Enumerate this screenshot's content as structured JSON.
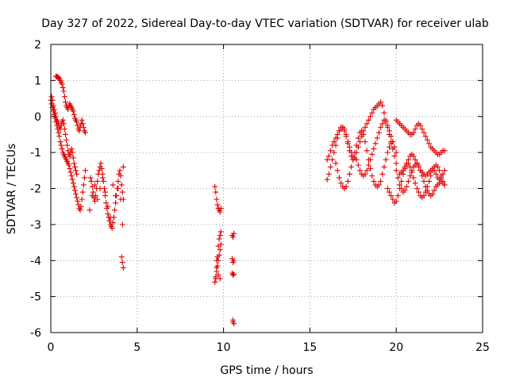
{
  "chart_data": {
    "type": "scatter",
    "title": "Day 327 of 2022, Sidereal Day-to-day VTEC variation (SDTVAR) for receiver ulab",
    "xlabel": "GPS time / hours",
    "ylabel": "SDTVAR / TECUs",
    "xlim": [
      0,
      25
    ],
    "ylim": [
      -6,
      2
    ],
    "x_ticks": [
      0,
      5,
      10,
      15,
      20,
      25
    ],
    "y_ticks": [
      -6,
      -5,
      -4,
      -3,
      -2,
      -1,
      0,
      1,
      2
    ],
    "x_tick_labels": [
      "0",
      "5",
      "10",
      "15",
      "20",
      "25"
    ],
    "y_tick_labels": [
      "-6",
      "-5",
      "-4",
      "-3",
      "-2",
      "-1",
      "0",
      "1",
      "2"
    ],
    "grid": true,
    "marker": "+",
    "series": [
      {
        "name": "SDTVAR",
        "color": "#e00000",
        "x": [
          0.0,
          0.05,
          0.1,
          0.15,
          0.2,
          0.25,
          0.3,
          0.35,
          0.4,
          0.45,
          0.5,
          0.55,
          0.6,
          0.65,
          0.7,
          0.75,
          0.8,
          0.85,
          0.9,
          0.95,
          1.0,
          1.05,
          1.1,
          1.15,
          1.2,
          1.25,
          1.3,
          1.35,
          1.4,
          1.45,
          1.5,
          1.55,
          1.6,
          1.65,
          1.7,
          1.75,
          1.8,
          1.85,
          1.9,
          1.95,
          2.0,
          0.05,
          0.1,
          0.15,
          0.2,
          0.25,
          0.3,
          0.35,
          0.4,
          0.45,
          0.5,
          0.55,
          0.6,
          0.65,
          0.7,
          0.75,
          0.8,
          0.85,
          0.9,
          0.95,
          1.0,
          1.05,
          1.1,
          1.15,
          1.2,
          1.25,
          1.3,
          1.35,
          1.4,
          1.45,
          1.5,
          0.3,
          0.35,
          0.4,
          0.45,
          0.5,
          0.55,
          0.6,
          0.65,
          0.7,
          0.75,
          0.8,
          0.85,
          0.9,
          0.95,
          1.0,
          1.05,
          1.1,
          1.15,
          1.2,
          1.25,
          1.3,
          1.35,
          1.4,
          1.45,
          1.5,
          1.55,
          1.6,
          1.65,
          1.7,
          1.75,
          1.8,
          1.85,
          1.9,
          1.95,
          2.0,
          2.3,
          2.35,
          2.4,
          2.45,
          2.5,
          2.55,
          2.6,
          2.65,
          2.7,
          2.75,
          2.8,
          2.85,
          2.9,
          2.95,
          3.0,
          3.05,
          3.1,
          3.15,
          3.2,
          3.25,
          3.3,
          3.35,
          3.4,
          3.45,
          3.5,
          3.55,
          3.6,
          3.65,
          3.7,
          3.75,
          3.8,
          3.85,
          3.9,
          3.95,
          4.0,
          4.05,
          4.1,
          4.15,
          4.2,
          2.25,
          2.4,
          2.55,
          2.7,
          2.85,
          3.0,
          3.15,
          3.3,
          3.45,
          3.6,
          3.75,
          3.9,
          4.05,
          4.2,
          4.1,
          4.15,
          4.2,
          4.15,
          9.5,
          9.55,
          9.6,
          9.65,
          9.7,
          9.75,
          9.8,
          9.85,
          9.5,
          9.55,
          9.6,
          9.65,
          9.7,
          9.75,
          9.8,
          9.85,
          9.55,
          9.6,
          9.65,
          9.7,
          9.75,
          9.8,
          9.85,
          9.6,
          9.7,
          9.8,
          10.5,
          10.55,
          10.6,
          10.5,
          10.55,
          10.6,
          10.5,
          10.55,
          10.6,
          10.55,
          10.6,
          10.55,
          16.0,
          16.1,
          16.2,
          16.3,
          16.4,
          16.5,
          16.6,
          16.7,
          16.8,
          16.9,
          17.0,
          17.1,
          17.2,
          17.3,
          17.4,
          17.5,
          17.6,
          17.7,
          17.8,
          17.9,
          18.0,
          18.1,
          18.2,
          18.3,
          18.4,
          18.5,
          18.6,
          18.7,
          18.8,
          18.9,
          19.0,
          19.1,
          19.2,
          19.3,
          19.4,
          19.5,
          19.6,
          19.7,
          19.8,
          19.9,
          20.0,
          16.0,
          16.1,
          16.2,
          16.3,
          16.4,
          16.5,
          16.6,
          16.7,
          16.8,
          16.9,
          17.0,
          17.1,
          17.2,
          17.3,
          17.4,
          17.5,
          17.6,
          17.7,
          17.8,
          17.9,
          18.0,
          18.1,
          18.2,
          18.3,
          18.4,
          18.5,
          18.6,
          18.7,
          18.8,
          18.9,
          19.0,
          19.1,
          19.2,
          19.3,
          19.4,
          19.5,
          19.6,
          19.7,
          19.8,
          19.9,
          20.0,
          16.5,
          16.6,
          16.7,
          16.8,
          16.9,
          17.0,
          17.1,
          17.2,
          17.3,
          17.4,
          17.5,
          17.6,
          17.7,
          17.8,
          17.9,
          18.0,
          18.1,
          18.2,
          18.3,
          18.4,
          18.5,
          18.6,
          18.7,
          18.8,
          18.9,
          19.0,
          19.1,
          19.2,
          19.3,
          19.4,
          19.5,
          19.6,
          19.7,
          19.8,
          19.5,
          19.6,
          19.7,
          19.8,
          19.9,
          20.0,
          20.1,
          20.2,
          20.3,
          20.4,
          20.5,
          20.6,
          20.7,
          20.8,
          20.9,
          21.0,
          21.1,
          21.2,
          21.3,
          21.4,
          21.5,
          21.6,
          21.7,
          21.8,
          21.9,
          22.0,
          22.1,
          22.2,
          22.3,
          22.4,
          22.5,
          22.6,
          22.7,
          22.8,
          20.0,
          20.1,
          20.2,
          20.3,
          20.4,
          20.5,
          20.6,
          20.7,
          20.8,
          20.9,
          21.0,
          21.1,
          21.2,
          21.3,
          21.4,
          21.5,
          21.6,
          21.7,
          21.8,
          21.9,
          22.0,
          22.1,
          22.2,
          22.3,
          22.4,
          22.5,
          22.6,
          22.7,
          22.8,
          20.2,
          20.3,
          20.4,
          20.5,
          20.6,
          20.7,
          20.8,
          20.9,
          21.0,
          21.1,
          21.2,
          21.3,
          21.4,
          21.5,
          21.6,
          21.7,
          21.8,
          21.9,
          22.0,
          22.1,
          22.2,
          22.3,
          22.4,
          22.5,
          22.6,
          22.7,
          22.8,
          20.0,
          20.1,
          20.2,
          20.3,
          20.4,
          20.5,
          20.6,
          20.7,
          20.8,
          20.9,
          21.0,
          21.1,
          21.2,
          21.3,
          21.4,
          21.5,
          21.6,
          21.7,
          21.8,
          21.9,
          22.0,
          22.1,
          22.2,
          22.3,
          22.4,
          22.5,
          22.6,
          22.7,
          22.8
        ],
        "y": [
          0.45,
          0.35,
          0.25,
          0.15,
          0.05,
          -0.05,
          -0.15,
          -0.25,
          -0.35,
          -0.45,
          -0.55,
          -0.7,
          -0.8,
          -0.9,
          -1.0,
          -1.05,
          -1.1,
          -1.15,
          -1.2,
          -1.25,
          -1.3,
          -1.35,
          -1.45,
          -1.55,
          -1.65,
          -1.75,
          -1.85,
          -1.95,
          -2.05,
          -2.15,
          -2.25,
          -2.35,
          -2.45,
          -2.55,
          -2.6,
          -2.5,
          -2.3,
          -2.1,
          -1.9,
          -1.7,
          -1.5,
          0.55,
          0.45,
          0.3,
          0.2,
          0.1,
          0.0,
          -0.1,
          -0.15,
          -0.2,
          -0.3,
          -0.35,
          -0.25,
          -0.15,
          -0.1,
          -0.2,
          -0.35,
          -0.5,
          -0.65,
          -0.8,
          -0.95,
          -1.05,
          -1.1,
          -1.0,
          -0.9,
          -1.0,
          -1.15,
          -1.3,
          -1.4,
          -1.5,
          -1.6,
          1.12,
          1.1,
          1.1,
          1.08,
          1.05,
          1.0,
          0.95,
          0.9,
          0.8,
          0.7,
          0.55,
          0.4,
          0.3,
          0.25,
          0.2,
          0.3,
          0.35,
          0.3,
          0.25,
          0.2,
          0.15,
          0.05,
          -0.05,
          -0.1,
          -0.15,
          -0.25,
          -0.35,
          -0.4,
          -0.3,
          -0.2,
          -0.1,
          -0.2,
          -0.3,
          -0.4,
          -0.45,
          -1.7,
          -1.8,
          -1.95,
          -2.1,
          -2.25,
          -2.35,
          -2.2,
          -2.0,
          -1.8,
          -1.6,
          -1.5,
          -1.4,
          -1.3,
          -1.45,
          -1.6,
          -1.8,
          -2.0,
          -2.2,
          -2.4,
          -2.55,
          -2.7,
          -2.8,
          -2.9,
          -3.0,
          -3.05,
          -3.1,
          -2.95,
          -2.8,
          -2.6,
          -2.4,
          -2.2,
          -2.0,
          -1.8,
          -1.6,
          -1.5,
          -1.65,
          -1.9,
          -2.1,
          -2.3,
          -2.6,
          -2.2,
          -1.9,
          -2.3,
          -2.0,
          -1.7,
          -2.1,
          -2.5,
          -2.8,
          -1.9,
          -2.2,
          -2.0,
          -2.3,
          -1.4,
          -3.9,
          -4.05,
          -4.2,
          -3.0,
          -1.95,
          -2.1,
          -2.3,
          -2.45,
          -2.55,
          -2.6,
          -2.65,
          -2.55,
          -4.6,
          -4.45,
          -4.3,
          -4.15,
          -4.0,
          -3.85,
          -3.7,
          -3.55,
          -4.5,
          -4.2,
          -3.9,
          -3.6,
          -3.4,
          -3.3,
          -3.2,
          -4.0,
          -4.4,
          -4.5,
          -3.3,
          -3.35,
          -3.25,
          -3.95,
          -4.05,
          -4.0,
          -4.35,
          -4.4,
          -4.38,
          -5.65,
          -5.75,
          -5.7,
          -1.75,
          -1.6,
          -1.4,
          -1.2,
          -1.0,
          -0.8,
          -0.6,
          -0.4,
          -0.3,
          -0.3,
          -0.4,
          -0.55,
          -0.75,
          -0.95,
          -1.1,
          -1.2,
          -1.15,
          -1.0,
          -0.85,
          -0.7,
          -0.55,
          -0.4,
          -0.3,
          -0.2,
          -0.1,
          0.0,
          0.1,
          0.2,
          0.25,
          0.3,
          0.35,
          0.4,
          0.3,
          0.1,
          -0.1,
          -0.3,
          -0.5,
          -0.7,
          -0.9,
          -1.1,
          -1.3,
          -1.2,
          -1.1,
          -0.95,
          -0.8,
          -0.7,
          -0.6,
          -0.5,
          -0.4,
          -0.35,
          -0.3,
          -0.35,
          -0.5,
          -0.7,
          -0.85,
          -1.0,
          -1.1,
          -1.15,
          -1.2,
          -1.35,
          -1.5,
          -1.6,
          -1.65,
          -1.6,
          -1.5,
          -1.35,
          -1.2,
          -1.05,
          -0.9,
          -0.75,
          -0.6,
          -0.45,
          -0.3,
          -0.2,
          -0.1,
          -0.15,
          -0.25,
          -0.4,
          -0.55,
          -0.7,
          -0.85,
          -1.0,
          -1.3,
          -1.5,
          -1.7,
          -1.85,
          -1.95,
          -2.0,
          -1.95,
          -1.8,
          -1.6,
          -1.4,
          -1.2,
          -1.0,
          -0.8,
          -0.6,
          -0.45,
          -0.4,
          -0.5,
          -0.7,
          -0.95,
          -1.2,
          -1.45,
          -1.65,
          -1.8,
          -1.9,
          -1.95,
          -1.9,
          -1.8,
          -1.6,
          -1.4,
          -1.2,
          -1.0,
          -0.85,
          -0.75,
          -0.7,
          -2.0,
          -2.1,
          -2.2,
          -2.3,
          -2.4,
          -2.35,
          -2.2,
          -2.0,
          -1.8,
          -1.6,
          -1.45,
          -1.35,
          -1.3,
          -1.4,
          -1.55,
          -1.7,
          -1.85,
          -2.0,
          -2.1,
          -2.2,
          -2.25,
          -2.2,
          -2.1,
          -1.95,
          -1.8,
          -1.65,
          -1.5,
          -1.4,
          -1.35,
          -1.4,
          -1.5,
          -1.65,
          -1.8,
          -1.9,
          -0.1,
          -0.15,
          -0.2,
          -0.25,
          -0.3,
          -0.35,
          -0.4,
          -0.45,
          -0.5,
          -0.5,
          -0.45,
          -0.35,
          -0.25,
          -0.2,
          -0.25,
          -0.35,
          -0.45,
          -0.55,
          -0.65,
          -0.75,
          -0.85,
          -0.9,
          -0.95,
          -1.0,
          -1.05,
          -1.05,
          -1.0,
          -0.95,
          -0.95,
          -1.6,
          -1.55,
          -1.5,
          -1.4,
          -1.3,
          -1.2,
          -1.1,
          -1.05,
          -1.1,
          -1.2,
          -1.3,
          -1.4,
          -1.5,
          -1.55,
          -1.6,
          -1.65,
          -1.6,
          -1.55,
          -1.5,
          -1.45,
          -1.5,
          -1.6,
          -1.7,
          -1.75,
          -1.7,
          -1.6,
          -1.5,
          -1.5,
          -1.7,
          -1.9,
          -2.0,
          -2.1,
          -2.05,
          -1.95,
          -1.8,
          -1.65,
          -1.5,
          -1.4,
          -1.35,
          -1.3,
          -1.35,
          -1.5,
          -1.65,
          -1.8,
          -1.95,
          -2.05,
          -2.15,
          -2.2,
          -2.15,
          -2.05,
          -1.95,
          -1.9,
          -1.85,
          -1.8,
          -1.85,
          -1.9
        ]
      }
    ]
  }
}
